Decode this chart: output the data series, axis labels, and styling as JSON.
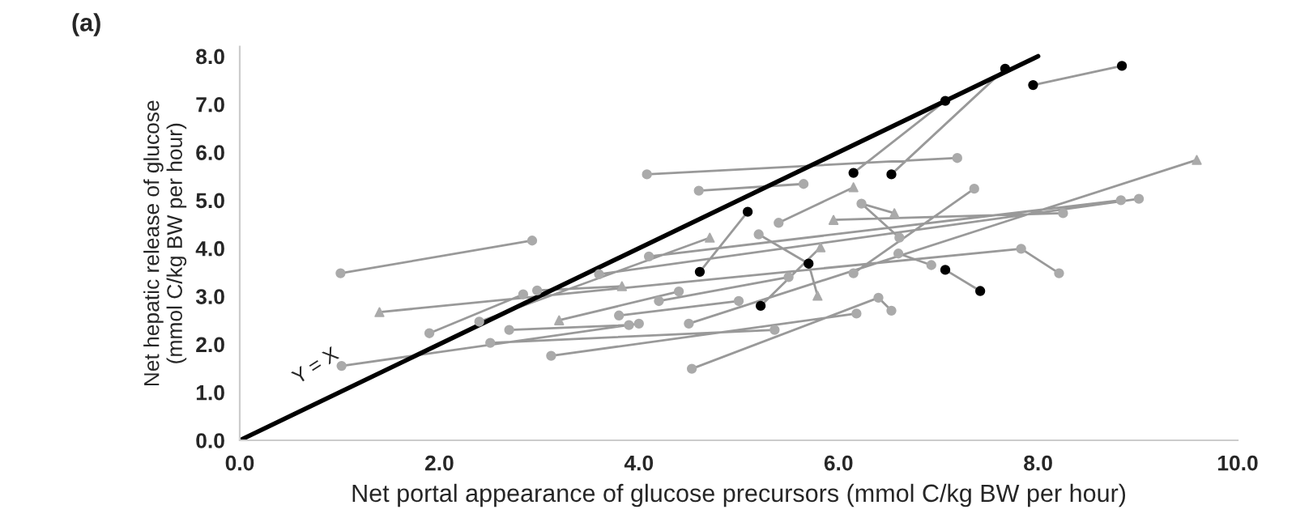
{
  "chart_data": {
    "type": "scatter",
    "title": "(a)",
    "xlabel": "Net portal appearance of glucose precursors (mmol C/kg BW per hour)",
    "ylabel": "Net hepatic release of glucose\n(mmol C/kg BW per hour)",
    "xlim": [
      0,
      10
    ],
    "ylim": [
      0,
      8.2
    ],
    "xticks": [
      {
        "value": 0,
        "label": "0.0"
      },
      {
        "value": 2,
        "label": "2.0"
      },
      {
        "value": 4,
        "label": "4.0"
      },
      {
        "value": 6,
        "label": "6.0"
      },
      {
        "value": 8,
        "label": "8.0"
      },
      {
        "value": 10,
        "label": "10.0"
      }
    ],
    "yticks": [
      {
        "value": 0,
        "label": "0.0"
      },
      {
        "value": 1,
        "label": "1.0"
      },
      {
        "value": 2,
        "label": "2.0"
      },
      {
        "value": 3,
        "label": "3.0"
      },
      {
        "value": 4,
        "label": "4.0"
      },
      {
        "value": 5,
        "label": "5.0"
      },
      {
        "value": 6,
        "label": "6.0"
      },
      {
        "value": 7,
        "label": "7.0"
      },
      {
        "value": 8,
        "label": "8.0"
      }
    ],
    "grid": false,
    "legend": false,
    "annotations": [
      {
        "text": "Y = X",
        "x": 0.9,
        "y": 0.9
      }
    ],
    "series": [
      {
        "type": "line",
        "color": "#999999",
        "marker": "none",
        "x": [
          1.01,
          2.93,
          null,
          4.08,
          7.19,
          null,
          4.6,
          5.65,
          null,
          4.61,
          5.09,
          null,
          1.4,
          7.83,
          null,
          1.02,
          4.0,
          null,
          3.12,
          6.18,
          null,
          4.53,
          6.4,
          null,
          6.4,
          6.53,
          null,
          1.9,
          2.84,
          null,
          2.4,
          4.71,
          null,
          2.98,
          3.83,
          null,
          2.51,
          5.36,
          null,
          6.15,
          7.07,
          null,
          6.53,
          7.67,
          null,
          7.95,
          8.84,
          null,
          5.4,
          6.15,
          null,
          6.15,
          7.36,
          null,
          5.95,
          8.25,
          null,
          6.23,
          6.56,
          null,
          6.23,
          6.61,
          null,
          4.1,
          8.83,
          null,
          3.6,
          9.01,
          null,
          4.5,
          9.59,
          null,
          7.83,
          8.21,
          null,
          7.07,
          7.42,
          null,
          5.2,
          5.7,
          null,
          5.7,
          5.79,
          null,
          5.22,
          5.82,
          null,
          6.6,
          6.93,
          null,
          3.8,
          5.0,
          null,
          3.2,
          4.4,
          null,
          4.2,
          5.5,
          null,
          2.7,
          3.9
        ],
        "values": [
          3.48,
          4.16,
          null,
          5.54,
          5.88,
          null,
          5.2,
          5.34,
          null,
          3.51,
          4.76,
          null,
          2.67,
          3.99,
          null,
          1.55,
          2.43,
          null,
          1.76,
          2.64,
          null,
          1.49,
          2.97,
          null,
          2.97,
          2.7,
          null,
          2.23,
          3.04,
          null,
          2.47,
          4.22,
          null,
          3.12,
          3.21,
          null,
          2.03,
          2.3,
          null,
          5.57,
          7.07,
          null,
          5.54,
          7.74,
          null,
          7.4,
          7.8,
          null,
          4.53,
          5.27,
          null,
          3.48,
          5.24,
          null,
          4.59,
          4.73,
          null,
          4.93,
          4.73,
          null,
          4.93,
          4.22,
          null,
          3.83,
          5.0,
          null,
          3.46,
          5.03,
          null,
          2.43,
          5.84,
          null,
          3.99,
          3.48,
          null,
          3.55,
          3.11,
          null,
          4.29,
          3.68,
          null,
          3.68,
          3.01,
          null,
          2.8,
          4.02,
          null,
          3.89,
          3.65,
          null,
          2.6,
          2.9,
          null,
          2.5,
          3.1,
          null,
          2.9,
          3.4,
          null,
          2.3,
          2.4
        ]
      },
      {
        "color": "#aaaaaa",
        "marker": "circle",
        "x": [
          1.01,
          2.93,
          4.08,
          7.19,
          4.6,
          5.65,
          7.83,
          1.02,
          4.0,
          3.12,
          6.18,
          4.53,
          6.4,
          6.53,
          1.9,
          2.84,
          2.4,
          2.98,
          2.51,
          5.36,
          5.4,
          6.15,
          7.36,
          8.25,
          6.23,
          6.61,
          4.1,
          8.83,
          3.6,
          9.01,
          4.5,
          8.21,
          5.2,
          6.6,
          6.93,
          3.8,
          5.0,
          4.4,
          4.2,
          5.5,
          2.7,
          3.9
        ],
        "values": [
          3.48,
          4.16,
          5.54,
          5.88,
          5.2,
          5.34,
          3.99,
          1.55,
          2.43,
          1.76,
          2.64,
          1.49,
          2.97,
          2.7,
          2.23,
          3.04,
          2.47,
          3.12,
          2.03,
          2.3,
          4.53,
          3.48,
          5.24,
          4.73,
          4.93,
          4.22,
          3.83,
          5.0,
          3.46,
          5.03,
          2.43,
          3.48,
          4.29,
          3.89,
          3.65,
          2.6,
          2.9,
          3.1,
          2.9,
          3.4,
          2.3,
          2.4
        ]
      },
      {
        "color": "#aaaaaa",
        "marker": "triangle",
        "x": [
          1.4,
          4.71,
          5.95,
          6.15,
          6.56,
          9.59,
          5.79,
          5.82,
          3.2,
          3.83
        ],
        "values": [
          2.67,
          4.22,
          4.59,
          5.27,
          4.73,
          5.84,
          3.01,
          4.02,
          2.5,
          3.21
        ]
      },
      {
        "color": "#000000",
        "marker": "circle",
        "x": [
          4.61,
          5.09,
          6.15,
          6.53,
          7.07,
          7.67,
          7.95,
          8.84,
          7.07,
          7.42,
          5.7,
          5.22
        ],
        "values": [
          3.51,
          4.76,
          5.57,
          5.54,
          7.07,
          7.74,
          7.4,
          7.8,
          3.55,
          3.11,
          3.68,
          2.8
        ]
      },
      {
        "type": "line",
        "color": "#000000",
        "marker": "none",
        "x": [
          0,
          8
        ],
        "values": [
          0,
          8
        ]
      }
    ]
  }
}
